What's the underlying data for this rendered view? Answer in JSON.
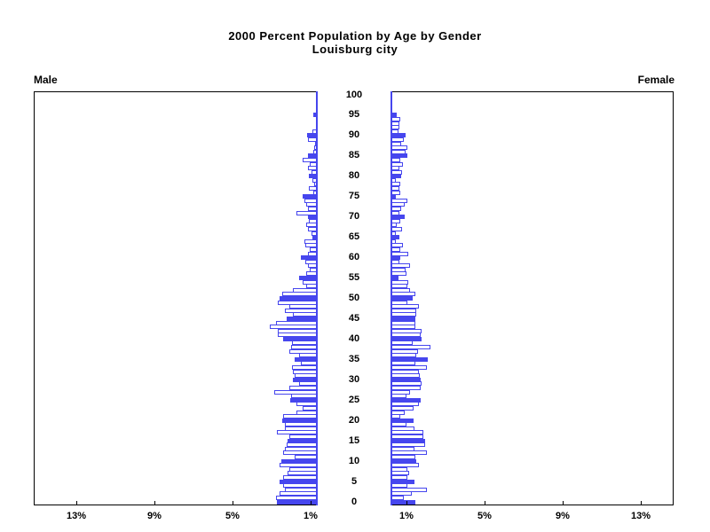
{
  "title": {
    "line1": "2000 Percent Population by Age by Gender",
    "line2": "Louisburg city"
  },
  "panels": {
    "male_label": "Male",
    "female_label": "Female"
  },
  "axis": {
    "left_pct_labels": [
      "13%",
      "9%",
      "5%",
      "1%"
    ],
    "right_pct_labels": [
      "1%",
      "5%",
      "9%",
      "13%"
    ],
    "age_tick_labels": [
      "0",
      "5",
      "10",
      "15",
      "20",
      "25",
      "30",
      "35",
      "40",
      "45",
      "50",
      "55",
      "60",
      "65",
      "70",
      "75",
      "80",
      "85",
      "90",
      "95",
      "100"
    ]
  },
  "chart_data": {
    "type": "bar",
    "subtype": "population-pyramid",
    "title": "2000 Percent Population by Age by Gender",
    "subtitle": "Louisburg city",
    "orientation": "horizontal",
    "units": "percent of population",
    "age_min": 0,
    "age_max": 100,
    "age_step": 1,
    "age_axis_ticks": [
      0,
      5,
      10,
      15,
      20,
      25,
      30,
      35,
      40,
      45,
      50,
      55,
      60,
      65,
      70,
      75,
      80,
      85,
      90,
      95,
      100
    ],
    "x_ticks_pct": [
      1,
      5,
      9,
      13
    ],
    "xlim_pct": [
      0,
      15
    ],
    "filled_bar_every": 5,
    "legend": "solid bars mark ages that are multiples of 5; other single-year bars are outlined",
    "series": [
      {
        "name": "Male",
        "side": "left",
        "values_pct_by_age": [
          2.15,
          2.2,
          2.0,
          1.75,
          1.8,
          2.0,
          1.8,
          1.6,
          1.5,
          2.0,
          1.9,
          1.2,
          1.8,
          1.75,
          1.65,
          1.6,
          1.5,
          2.15,
          1.75,
          1.75,
          1.85,
          1.8,
          1.1,
          0.8,
          1.1,
          1.45,
          1.4,
          2.3,
          1.5,
          1.0,
          1.3,
          1.2,
          1.3,
          1.35,
          0.9,
          1.2,
          1.0,
          1.5,
          1.4,
          1.35,
          1.8,
          2.1,
          2.1,
          2.5,
          2.2,
          1.65,
          1.3,
          1.75,
          1.5,
          2.1,
          2.0,
          1.85,
          1.3,
          0.6,
          0.8,
          1.0,
          0.6,
          0.4,
          0.5,
          0.65,
          0.9,
          0.5,
          0.4,
          0.65,
          0.7,
          0.3,
          0.35,
          0.5,
          0.6,
          0.45,
          0.5,
          1.1,
          0.5,
          0.6,
          0.7,
          0.8,
          0.25,
          0.45,
          0.2,
          0.3,
          0.45,
          0.35,
          0.5,
          0.4,
          0.8,
          0.5,
          0.25,
          0.2,
          0.15,
          0.5,
          0.55,
          0.3,
          0.1,
          0.1,
          0,
          0.25,
          0,
          0,
          0,
          0,
          0.05
        ]
      },
      {
        "name": "Female",
        "side": "right",
        "values_pct_by_age": [
          1.3,
          0.7,
          1.1,
          1.9,
          0.9,
          1.25,
          0.9,
          1.0,
          0.9,
          1.5,
          1.35,
          1.3,
          1.9,
          1.25,
          1.8,
          1.8,
          1.75,
          1.75,
          1.25,
          0.85,
          1.2,
          0.5,
          0.75,
          1.2,
          1.5,
          1.6,
          0.85,
          1.05,
          1.6,
          1.65,
          1.6,
          1.55,
          1.5,
          1.9,
          1.3,
          1.95,
          1.35,
          1.45,
          2.1,
          1.15,
          1.65,
          1.6,
          1.65,
          1.3,
          1.3,
          1.3,
          1.35,
          1.35,
          1.5,
          0.9,
          1.15,
          1.3,
          1.05,
          0.9,
          0.95,
          0.4,
          0.85,
          0.8,
          1.05,
          0.45,
          0.5,
          0.95,
          0.5,
          0.65,
          0.3,
          0.45,
          0.3,
          0.6,
          0.35,
          0.5,
          0.75,
          0.45,
          0.55,
          0.75,
          0.9,
          0.3,
          0.5,
          0.45,
          0.5,
          0.3,
          0.55,
          0.6,
          0.45,
          0.65,
          0.5,
          0.9,
          0.8,
          0.9,
          0.55,
          0.7,
          0.8,
          0.4,
          0.45,
          0.45,
          0.5,
          0.35,
          0.1,
          0,
          0,
          0,
          0
        ]
      }
    ],
    "colors": {
      "bar_outline": "#4646ee",
      "bar_fill": "#4646ee",
      "bar_empty_fill": "#ffffff",
      "inner_axis_line": "#4646ee",
      "frame": "#000000",
      "text": "#000000",
      "background": "#ffffff"
    }
  }
}
